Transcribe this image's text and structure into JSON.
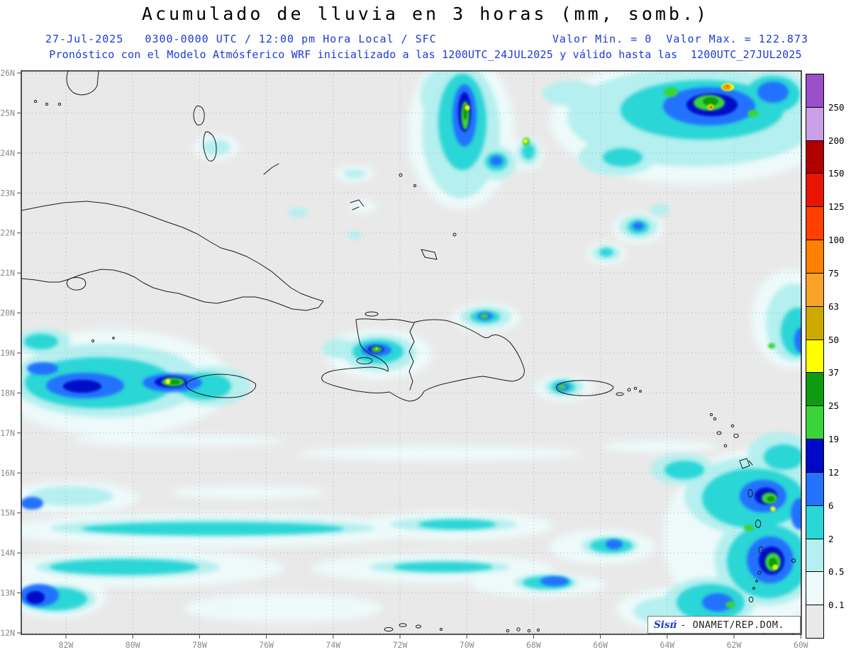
{
  "header": {
    "title": "Acumulado de lluvia en 3 horas (mm, somb.)",
    "subtitle_left": "27-Jul-2025   0300-0000 UTC / 12:00 pm Hora Local / SFC",
    "subtitle_right": "Valor Min. = 0  Valor Max. = 122.873",
    "subtitle_model": "Pronóstico con el Modelo Atmósferico WRF inicializado a las 1200UTC_24JUL2025 y válido hasta las  1200UTC_27JUL2025",
    "text_color": "#1b3bd6"
  },
  "axes": {
    "lat_labels": [
      "26N",
      "25N",
      "24N",
      "23N",
      "22N",
      "21N",
      "20N",
      "19N",
      "18N",
      "17N",
      "16N",
      "15N",
      "14N",
      "13N",
      "12N"
    ],
    "lon_labels": [
      "82W",
      "80W",
      "78W",
      "76W",
      "74W",
      "72W",
      "70W",
      "68W",
      "66W",
      "64W",
      "62W",
      "60W"
    ]
  },
  "legend": {
    "units": "mm",
    "labels_top_to_bottom": [
      "250",
      "200",
      "150",
      "125",
      "100",
      "75",
      "63",
      "50",
      "37",
      "25",
      "19",
      "12",
      "6",
      "2",
      "0.5",
      "0.1"
    ],
    "colors_bottom_to_top": [
      "#e9e9e9",
      "#eefafa",
      "#b5efef",
      "#2ad6d6",
      "#2472ff",
      "#0008c8",
      "#3ad43a",
      "#0f9b0f",
      "#ffff00",
      "#ccaa00",
      "#f7a329",
      "#ff7f00",
      "#ff3f00",
      "#e81500",
      "#b00000",
      "#c9a0e8",
      "#9950c8"
    ]
  },
  "watermark": {
    "brand": "Sisπ́",
    "text": "- ONAMET/REP.DOM."
  },
  "chart_data": {
    "type": "heatmap",
    "title": "Acumulado de lluvia en 3 horas (mm, somb.)",
    "valid_date": "27-Jul-2025",
    "period": "0300-0000 UTC / 12:00 pm Hora Local / SFC",
    "value_min": 0,
    "value_max": 122.873,
    "model": "WRF",
    "initialized": "1200UTC_24JUL2025",
    "valid_until": "1200UTC_27JUL2025",
    "lat_range": [
      "12N",
      "26N"
    ],
    "lon_range": [
      "82W",
      "60W"
    ],
    "contour_levels_mm": [
      0.1,
      0.5,
      2,
      6,
      12,
      19,
      25,
      37,
      50,
      63,
      75,
      100,
      125,
      150,
      200,
      250
    ],
    "legend_position": "right",
    "grid": "dotted"
  }
}
